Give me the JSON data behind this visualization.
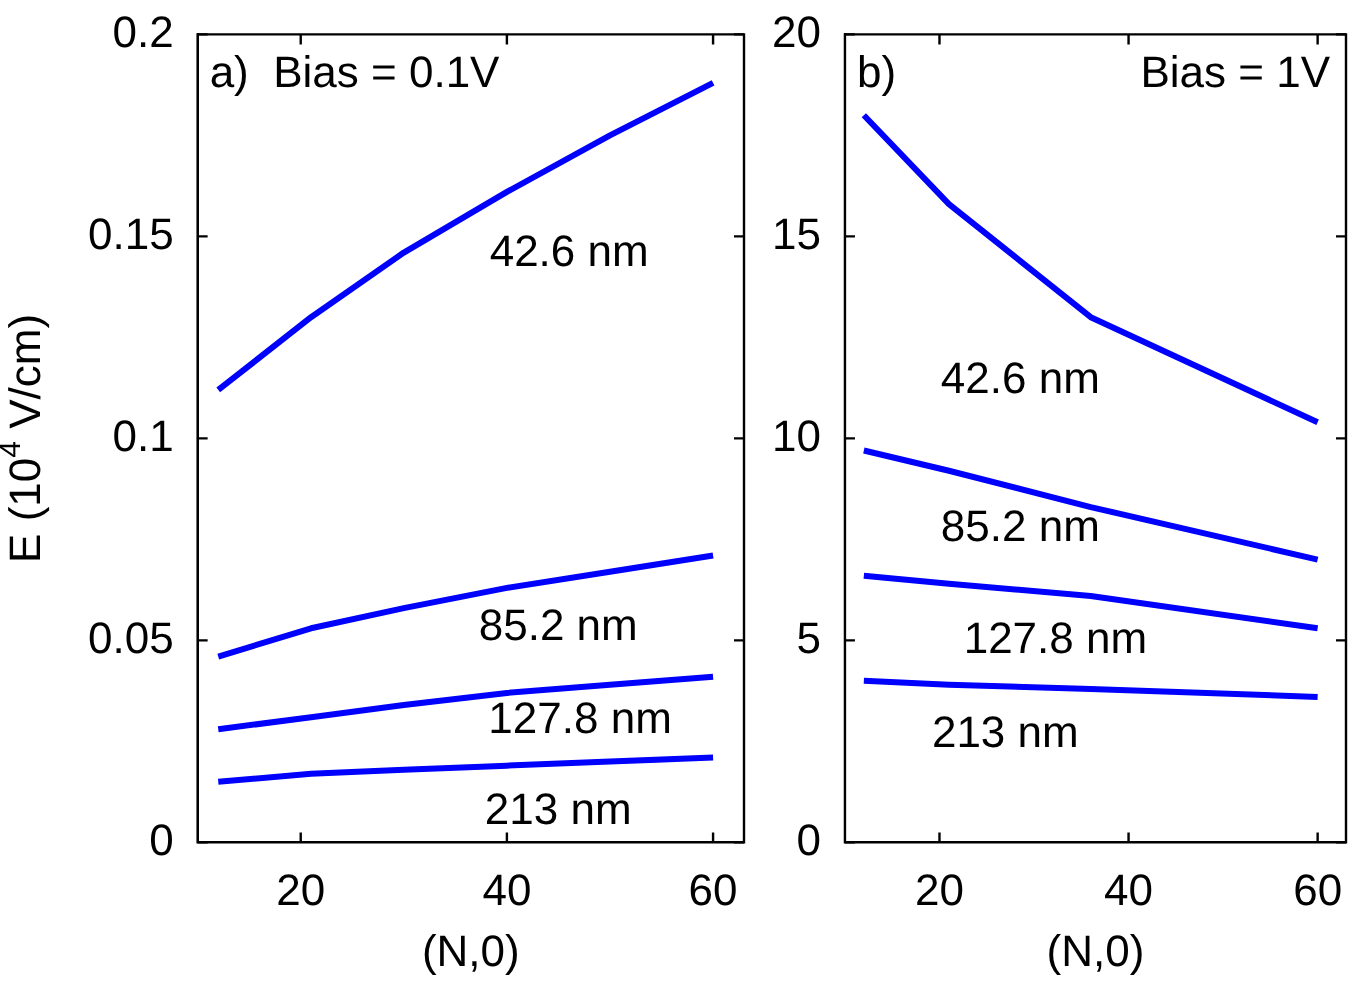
{
  "chart_data": [
    {
      "type": "line",
      "xlabel": "(N,0)",
      "ylabel": "E (10$^{4}$ V/cm)",
      "xlim": [
        10,
        63
      ],
      "xticks": [
        20,
        40,
        60
      ],
      "ylim": [
        0,
        0.2
      ],
      "yticks": [
        0,
        0.05,
        0.1,
        0.15,
        0.2
      ],
      "x": [
        12,
        21,
        30,
        40,
        50,
        60
      ],
      "series": [
        {
          "name": "42.6 nm",
          "color": "#0000ff",
          "values": [
            0.112,
            0.13,
            0.146,
            0.161,
            0.175,
            0.188
          ]
        },
        {
          "name": "85.2 nm",
          "color": "#0000ff",
          "values": [
            0.046,
            0.053,
            0.058,
            0.063,
            0.067,
            0.071
          ]
        },
        {
          "name": "127.8 nm",
          "color": "#0000ff",
          "values": [
            0.028,
            0.031,
            0.034,
            0.037,
            0.039,
            0.041
          ]
        },
        {
          "name": "213 nm",
          "color": "#0000ff",
          "values": [
            0.015,
            0.017,
            0.018,
            0.019,
            0.02,
            0.021
          ]
        }
      ],
      "annotations": [
        "a)  Bias = 0.1V"
      ]
    },
    {
      "type": "line",
      "xlabel": "(N,0)",
      "xlim": [
        10,
        63
      ],
      "xticks": [
        20,
        40,
        60
      ],
      "ylim": [
        0,
        20
      ],
      "yticks": [
        0,
        5,
        10,
        15,
        20
      ],
      "x": [
        12,
        21,
        36,
        60
      ],
      "series": [
        {
          "name": "42.6 nm",
          "color": "#0000ff",
          "values": [
            18.0,
            15.8,
            13.0,
            10.4
          ]
        },
        {
          "name": "85.2 nm",
          "color": "#0000ff",
          "values": [
            9.7,
            9.2,
            8.3,
            7.0
          ]
        },
        {
          "name": "127.8 nm",
          "color": "#0000ff",
          "values": [
            6.6,
            6.4,
            6.1,
            5.3
          ]
        },
        {
          "name": "213 nm",
          "color": "#0000ff",
          "values": [
            4.0,
            3.9,
            3.8,
            3.6
          ]
        }
      ],
      "annotations": [
        "b)",
        "Bias = 1V"
      ]
    }
  ]
}
